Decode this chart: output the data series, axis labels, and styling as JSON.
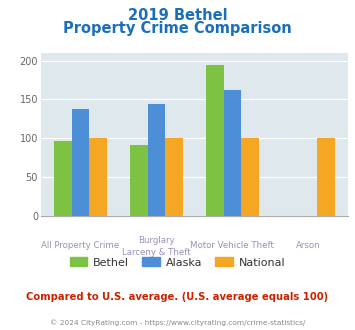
{
  "title_line1": "2019 Bethel",
  "title_line2": "Property Crime Comparison",
  "x_labels_top": [
    "",
    "Burglary",
    "Motor Vehicle Theft",
    ""
  ],
  "x_labels_bot": [
    "All Property Crime",
    "Larceny & Theft",
    "",
    "Arson"
  ],
  "bethel_vals": [
    97,
    91,
    194,
    0
  ],
  "alaska_vals": [
    138,
    144,
    162,
    0
  ],
  "national_vals": [
    100,
    100,
    100,
    100
  ],
  "color_bethel": "#7dc242",
  "color_alaska": "#4c8fd6",
  "color_national": "#f5a623",
  "color_bg": "#dfe8ed",
  "ylim": [
    0,
    210
  ],
  "yticks": [
    0,
    50,
    100,
    150,
    200
  ],
  "title_color": "#1a6fba",
  "xlabel_color": "#9b8fb5",
  "legend_text_color": "#333333",
  "note_color": "#cc2200",
  "footer_color": "#888888",
  "note_text": "Compared to U.S. average. (U.S. average equals 100)",
  "footer_text": "© 2024 CityRating.com - https://www.cityrating.com/crime-statistics/"
}
